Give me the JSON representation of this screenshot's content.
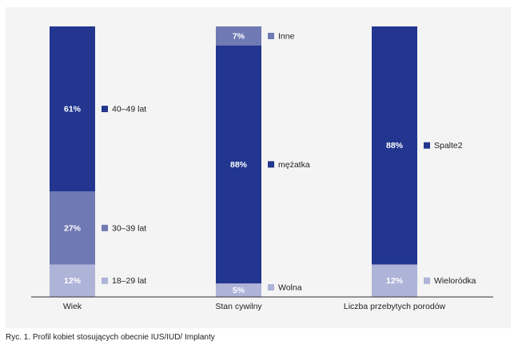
{
  "colors": {
    "panel_bg": "#f4f4f4",
    "dark": "#22368f",
    "mid": "#6f79b3",
    "light": "#aeb3d8",
    "baseline": "#333333",
    "bar_text": "#ffffff",
    "legend_text": "#222222"
  },
  "caption": "Ryc. 1. Profil kobiet stosujących obecnie IUS/IUD/ Implanty",
  "chart_data": {
    "type": "bar",
    "stacked": true,
    "unit": "%",
    "ylim": [
      0,
      100
    ],
    "grid": false,
    "categories": [
      "Wiek",
      "Stan cywilny",
      "Liczba przebytych porodów"
    ],
    "groups": [
      {
        "category": "Wiek",
        "segments": [
          {
            "name": "18–29 lat",
            "value": 12,
            "label": "12%",
            "color": "#aeb3d8"
          },
          {
            "name": "30–39 lat",
            "value": 27,
            "label": "27%",
            "color": "#6f79b3"
          },
          {
            "name": "40–49 lat",
            "value": 61,
            "label": "61%",
            "color": "#22368f"
          }
        ]
      },
      {
        "category": "Stan cywilny",
        "segments": [
          {
            "name": "Wolna",
            "value": 5,
            "label": "5%",
            "color": "#aeb3d8"
          },
          {
            "name": "mężatka",
            "value": 88,
            "label": "88%",
            "color": "#22368f"
          },
          {
            "name": "Inne",
            "value": 7,
            "label": "7%",
            "color": "#6f79b3"
          }
        ]
      },
      {
        "category": "Liczba przebytych porodów",
        "segments": [
          {
            "name": "Wieloródka",
            "value": 12,
            "label": "12%",
            "color": "#aeb3d8"
          },
          {
            "name": "Spalte2",
            "value": 88,
            "label": "88%",
            "color": "#22368f"
          }
        ]
      }
    ]
  }
}
